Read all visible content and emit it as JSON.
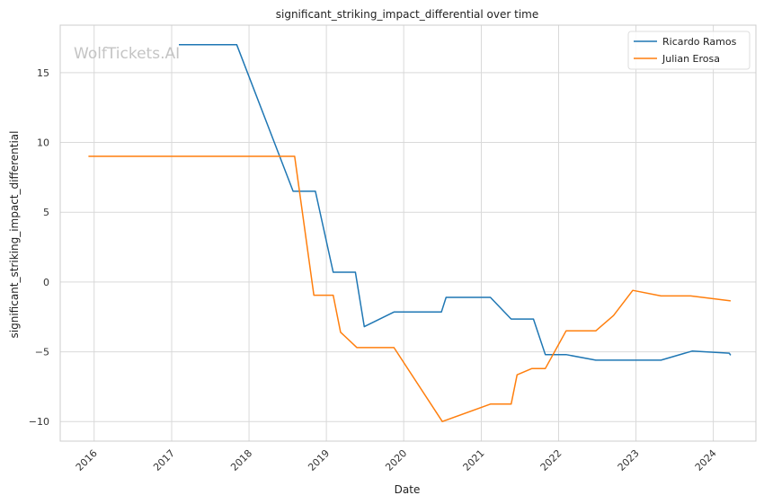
{
  "watermark": "WolfTickets.AI",
  "chart_data": {
    "type": "line",
    "title": "significant_striking_impact_differential over time",
    "xlabel": "Date",
    "ylabel": "significant_striking_impact_differential",
    "x_ticks": [
      "2016",
      "2017",
      "2018",
      "2019",
      "2020",
      "2021",
      "2022",
      "2023",
      "2024"
    ],
    "y_ticks": [
      15,
      10,
      5,
      0,
      -5,
      -10
    ],
    "xlim": [
      "2015-07-25",
      "2024-07-20"
    ],
    "ylim": [
      -11.4,
      18.4
    ],
    "grid": true,
    "legend_position": "top-right",
    "series": [
      {
        "name": "Ricardo Ramos",
        "color": "#1f77b4",
        "points": [
          [
            "2017-02-04",
            17.0
          ],
          [
            "2017-11-04",
            17.0
          ],
          [
            "2018-07-28",
            6.5
          ],
          [
            "2018-11-10",
            6.5
          ],
          [
            "2019-02-02",
            0.7
          ],
          [
            "2019-05-18",
            0.7
          ],
          [
            "2019-06-29",
            -3.2
          ],
          [
            "2019-11-16",
            -2.15
          ],
          [
            "2020-06-27",
            -2.15
          ],
          [
            "2020-07-19",
            -1.1
          ],
          [
            "2021-02-13",
            -1.1
          ],
          [
            "2021-05-22",
            -2.65
          ],
          [
            "2021-09-04",
            -2.65
          ],
          [
            "2021-10-30",
            -5.2
          ],
          [
            "2022-02-05",
            -5.2
          ],
          [
            "2022-06-25",
            -5.6
          ],
          [
            "2023-04-29",
            -5.6
          ],
          [
            "2023-09-23",
            -4.95
          ],
          [
            "2024-03-16",
            -5.1
          ],
          [
            "2024-03-23",
            -5.25
          ]
        ]
      },
      {
        "name": "Julian Erosa",
        "color": "#ff7f0e",
        "points": [
          [
            "2015-12-05",
            9.0
          ],
          [
            "2018-08-04",
            9.0
          ],
          [
            "2018-11-03",
            -0.95
          ],
          [
            "2019-02-02",
            -0.95
          ],
          [
            "2019-03-09",
            -3.6
          ],
          [
            "2019-05-25",
            -4.7
          ],
          [
            "2019-11-16",
            -4.7
          ],
          [
            "2020-07-01",
            -10.0
          ],
          [
            "2021-02-13",
            -8.75
          ],
          [
            "2021-05-22",
            -8.75
          ],
          [
            "2021-06-19",
            -6.65
          ],
          [
            "2021-08-28",
            -6.2
          ],
          [
            "2021-10-30",
            -6.2
          ],
          [
            "2022-02-05",
            -3.5
          ],
          [
            "2022-06-25",
            -3.5
          ],
          [
            "2022-09-17",
            -2.4
          ],
          [
            "2022-12-17",
            -0.6
          ],
          [
            "2023-04-29",
            -1.0
          ],
          [
            "2023-09-16",
            -1.0
          ],
          [
            "2024-03-23",
            -1.35
          ]
        ]
      }
    ]
  }
}
